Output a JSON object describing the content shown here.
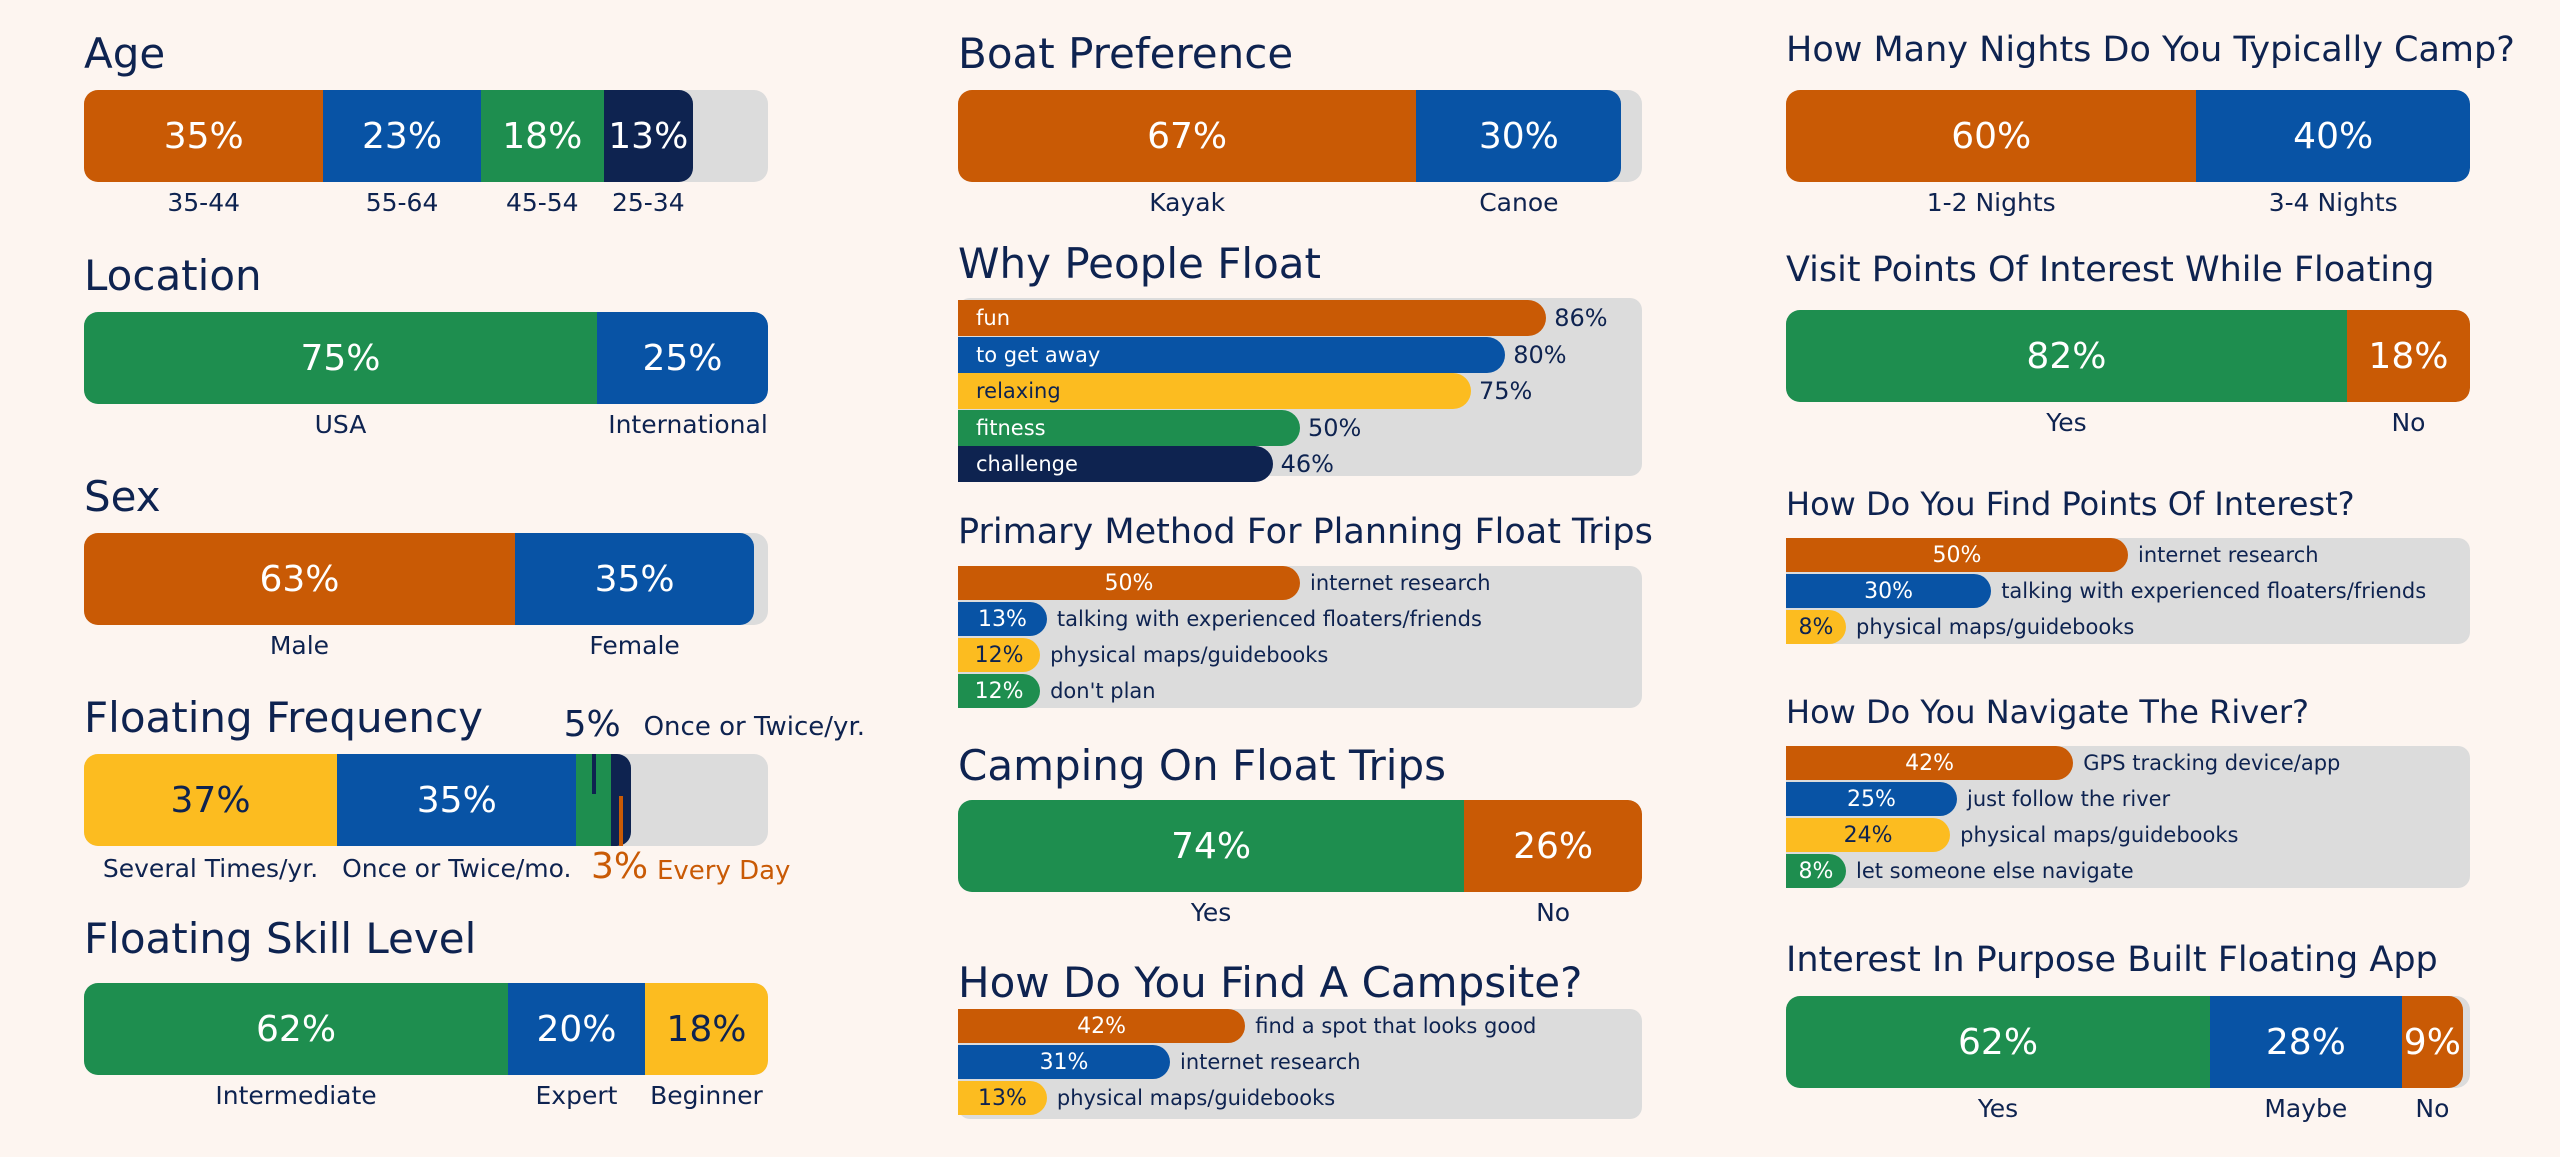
{
  "colors": {
    "orange": "#c95a05",
    "blue": "#0853a5",
    "green": "#1e8e4f",
    "navy": "#0e2350",
    "yellow": "#fcbc20",
    "track": "#dcdcdc",
    "background": "#fdf5f0"
  },
  "chart_data": [
    {
      "id": "age",
      "type": "bar",
      "stacked": true,
      "title": "Age",
      "series": [
        {
          "name": "35-44",
          "value": 35,
          "value_label": "35%",
          "color": "orange"
        },
        {
          "name": "55-64",
          "value": 23,
          "value_label": "23%",
          "color": "blue"
        },
        {
          "name": "45-54",
          "value": 18,
          "value_label": "18%",
          "color": "green"
        },
        {
          "name": "25-34",
          "value": 13,
          "value_label": "13%",
          "color": "navy"
        }
      ]
    },
    {
      "id": "location",
      "type": "bar",
      "stacked": true,
      "title": "Location",
      "series": [
        {
          "name": "USA",
          "value": 75,
          "value_label": "75%",
          "color": "green"
        },
        {
          "name": "International",
          "value": 25,
          "value_label": "25%",
          "color": "blue"
        }
      ]
    },
    {
      "id": "sex",
      "type": "bar",
      "stacked": true,
      "title": "Sex",
      "series": [
        {
          "name": "Male",
          "value": 63,
          "value_label": "63%",
          "color": "orange"
        },
        {
          "name": "Female",
          "value": 35,
          "value_label": "35%",
          "color": "blue"
        }
      ]
    },
    {
      "id": "frequency",
      "type": "bar",
      "stacked": true,
      "title": "Floating Frequency",
      "series": [
        {
          "name": "Several Times/yr.",
          "value": 37,
          "value_label": "37%",
          "color": "yellow"
        },
        {
          "name": "Once or Twice/mo.",
          "value": 35,
          "value_label": "35%",
          "color": "blue"
        },
        {
          "name": "Once or Twice/yr.",
          "value": 5,
          "value_label": "5%",
          "color": "green"
        },
        {
          "name": "Every Day",
          "value": 3,
          "value_label": "3%",
          "color": "navy"
        }
      ]
    },
    {
      "id": "skill",
      "type": "bar",
      "stacked": true,
      "title": "Floating Skill Level",
      "series": [
        {
          "name": "Intermediate",
          "value": 62,
          "value_label": "62%",
          "color": "green"
        },
        {
          "name": "Expert",
          "value": 20,
          "value_label": "20%",
          "color": "blue"
        },
        {
          "name": "Beginner",
          "value": 18,
          "value_label": "18%",
          "color": "yellow"
        }
      ]
    },
    {
      "id": "boat",
      "type": "bar",
      "stacked": true,
      "title": "Boat Preference",
      "series": [
        {
          "name": "Kayak",
          "value": 67,
          "value_label": "67%",
          "color": "orange"
        },
        {
          "name": "Canoe",
          "value": 30,
          "value_label": "30%",
          "color": "blue"
        }
      ]
    },
    {
      "id": "why",
      "type": "bar",
      "stacked": false,
      "title": "Why People Float",
      "series": [
        {
          "name": "fun",
          "value": 86,
          "value_label": "86%",
          "color": "orange"
        },
        {
          "name": "to get away",
          "value": 80,
          "value_label": "80%",
          "color": "blue"
        },
        {
          "name": "relaxing",
          "value": 75,
          "value_label": "75%",
          "color": "yellow"
        },
        {
          "name": "fitness",
          "value": 50,
          "value_label": "50%",
          "color": "green"
        },
        {
          "name": "challenge",
          "value": 46,
          "value_label": "46%",
          "color": "navy"
        }
      ]
    },
    {
      "id": "planning",
      "type": "bar",
      "stacked": false,
      "title": "Primary Method For Planning Float Trips",
      "series": [
        {
          "name": "internet research",
          "value": 50,
          "value_label": "50%",
          "color": "orange"
        },
        {
          "name": "talking with experienced floaters/friends",
          "value": 13,
          "value_label": "13%",
          "color": "blue"
        },
        {
          "name": "physical maps/guidebooks",
          "value": 12,
          "value_label": "12%",
          "color": "yellow"
        },
        {
          "name": "don't plan",
          "value": 12,
          "value_label": "12%",
          "color": "green"
        }
      ]
    },
    {
      "id": "camping",
      "type": "bar",
      "stacked": true,
      "title": "Camping On Float Trips",
      "series": [
        {
          "name": "Yes",
          "value": 74,
          "value_label": "74%",
          "color": "green"
        },
        {
          "name": "No",
          "value": 26,
          "value_label": "26%",
          "color": "orange"
        }
      ]
    },
    {
      "id": "campsite",
      "type": "bar",
      "stacked": false,
      "title": "How Do You Find A Campsite?",
      "series": [
        {
          "name": "find a spot that looks good",
          "value": 42,
          "value_label": "42%",
          "color": "orange"
        },
        {
          "name": "internet research",
          "value": 31,
          "value_label": "31%",
          "color": "blue"
        },
        {
          "name": "physical maps/guidebooks",
          "value": 13,
          "value_label": "13%",
          "color": "yellow"
        }
      ]
    },
    {
      "id": "nights",
      "type": "bar",
      "stacked": true,
      "title": "How Many Nights Do You Typically Camp?",
      "series": [
        {
          "name": "1-2 Nights",
          "value": 60,
          "value_label": "60%",
          "color": "orange"
        },
        {
          "name": "3-4 Nights",
          "value": 40,
          "value_label": "40%",
          "color": "blue"
        }
      ]
    },
    {
      "id": "poi",
      "type": "bar",
      "stacked": true,
      "title": "Visit Points Of Interest While Floating",
      "series": [
        {
          "name": "Yes",
          "value": 82,
          "value_label": "82%",
          "color": "green"
        },
        {
          "name": "No",
          "value": 18,
          "value_label": "18%",
          "color": "orange"
        }
      ]
    },
    {
      "id": "find_poi",
      "type": "bar",
      "stacked": false,
      "title": "How Do You Find Points Of Interest?",
      "series": [
        {
          "name": "internet research",
          "value": 50,
          "value_label": "50%",
          "color": "orange"
        },
        {
          "name": "talking with experienced floaters/friends",
          "value": 30,
          "value_label": "30%",
          "color": "blue"
        },
        {
          "name": "physical maps/guidebooks",
          "value": 8,
          "value_label": "8%",
          "color": "yellow"
        }
      ]
    },
    {
      "id": "navigate",
      "type": "bar",
      "stacked": false,
      "title": "How Do You Navigate The River?",
      "series": [
        {
          "name": "GPS tracking device/app",
          "value": 42,
          "value_label": "42%",
          "color": "orange"
        },
        {
          "name": "just follow the river",
          "value": 25,
          "value_label": "25%",
          "color": "blue"
        },
        {
          "name": "physical maps/guidebooks",
          "value": 24,
          "value_label": "24%",
          "color": "yellow"
        },
        {
          "name": "let someone else navigate",
          "value": 8,
          "value_label": "8%",
          "color": "green"
        }
      ]
    },
    {
      "id": "app",
      "type": "bar",
      "stacked": true,
      "title": "Interest In Purpose Built Floating App",
      "series": [
        {
          "name": "Yes",
          "value": 62,
          "value_label": "62%",
          "color": "green"
        },
        {
          "name": "Maybe",
          "value": 28,
          "value_label": "28%",
          "color": "blue"
        },
        {
          "name": "No",
          "value": 9,
          "value_label": "9%",
          "color": "orange"
        }
      ]
    }
  ]
}
